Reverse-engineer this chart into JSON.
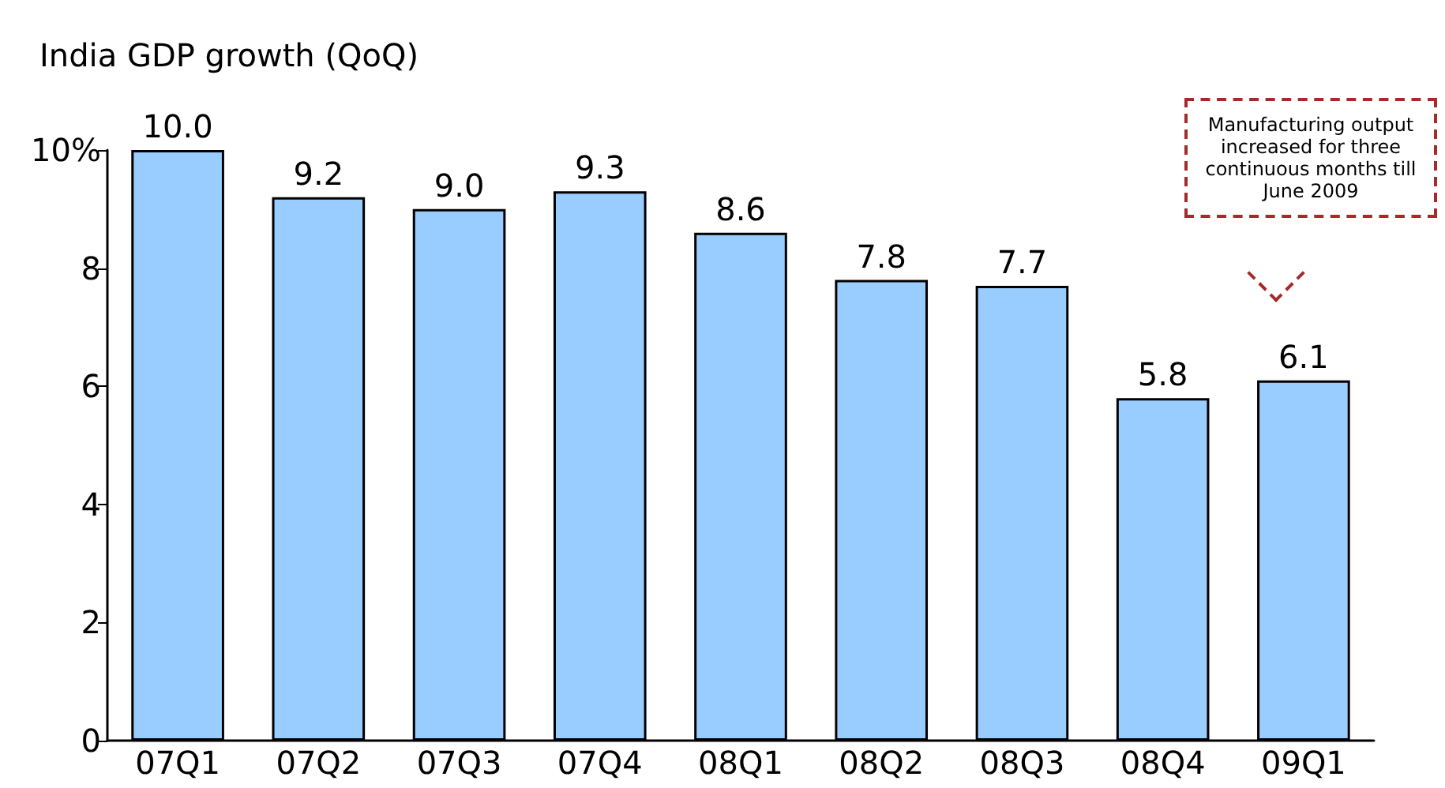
{
  "chart_data": {
    "type": "bar",
    "title": "India GDP growth (QoQ)",
    "categories": [
      "07Q1",
      "07Q2",
      "07Q3",
      "07Q4",
      "08Q1",
      "08Q2",
      "08Q3",
      "08Q4",
      "09Q1"
    ],
    "values": [
      10.0,
      9.2,
      9.0,
      9.3,
      8.6,
      7.8,
      7.7,
      5.8,
      6.1
    ],
    "value_labels": [
      "10.0",
      "9.2",
      "9.0",
      "9.3",
      "8.6",
      "7.8",
      "7.7",
      "5.8",
      "6.1"
    ],
    "color": "#99ccff",
    "ylim": [
      0,
      10
    ],
    "yticks": [
      0,
      2,
      4,
      6,
      8,
      {
        "value": 10,
        "label": "10%"
      }
    ],
    "grid": false,
    "annotations": [
      "Manufacturing output increased for three continuous months till June 2009"
    ]
  }
}
